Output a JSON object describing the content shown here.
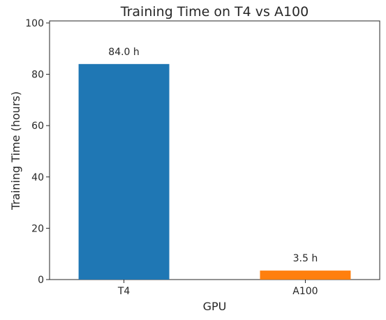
{
  "chart_data": {
    "type": "bar",
    "title": "Training Time on T4 vs A100",
    "xlabel": "GPU",
    "ylabel": "Training Time (hours)",
    "categories": [
      "T4",
      "A100"
    ],
    "values": [
      84.0,
      3.5
    ],
    "data_labels": [
      "84.0 h",
      "3.5 h"
    ],
    "colors": [
      "#1f77b4",
      "#ff7f0e"
    ],
    "ylim": [
      0,
      100.8
    ],
    "yticks": [
      0,
      20,
      40,
      60,
      80,
      100
    ],
    "ytick_labels": [
      "0",
      "20",
      "40",
      "60",
      "80",
      "100"
    ],
    "grid": false,
    "legend": "none"
  }
}
